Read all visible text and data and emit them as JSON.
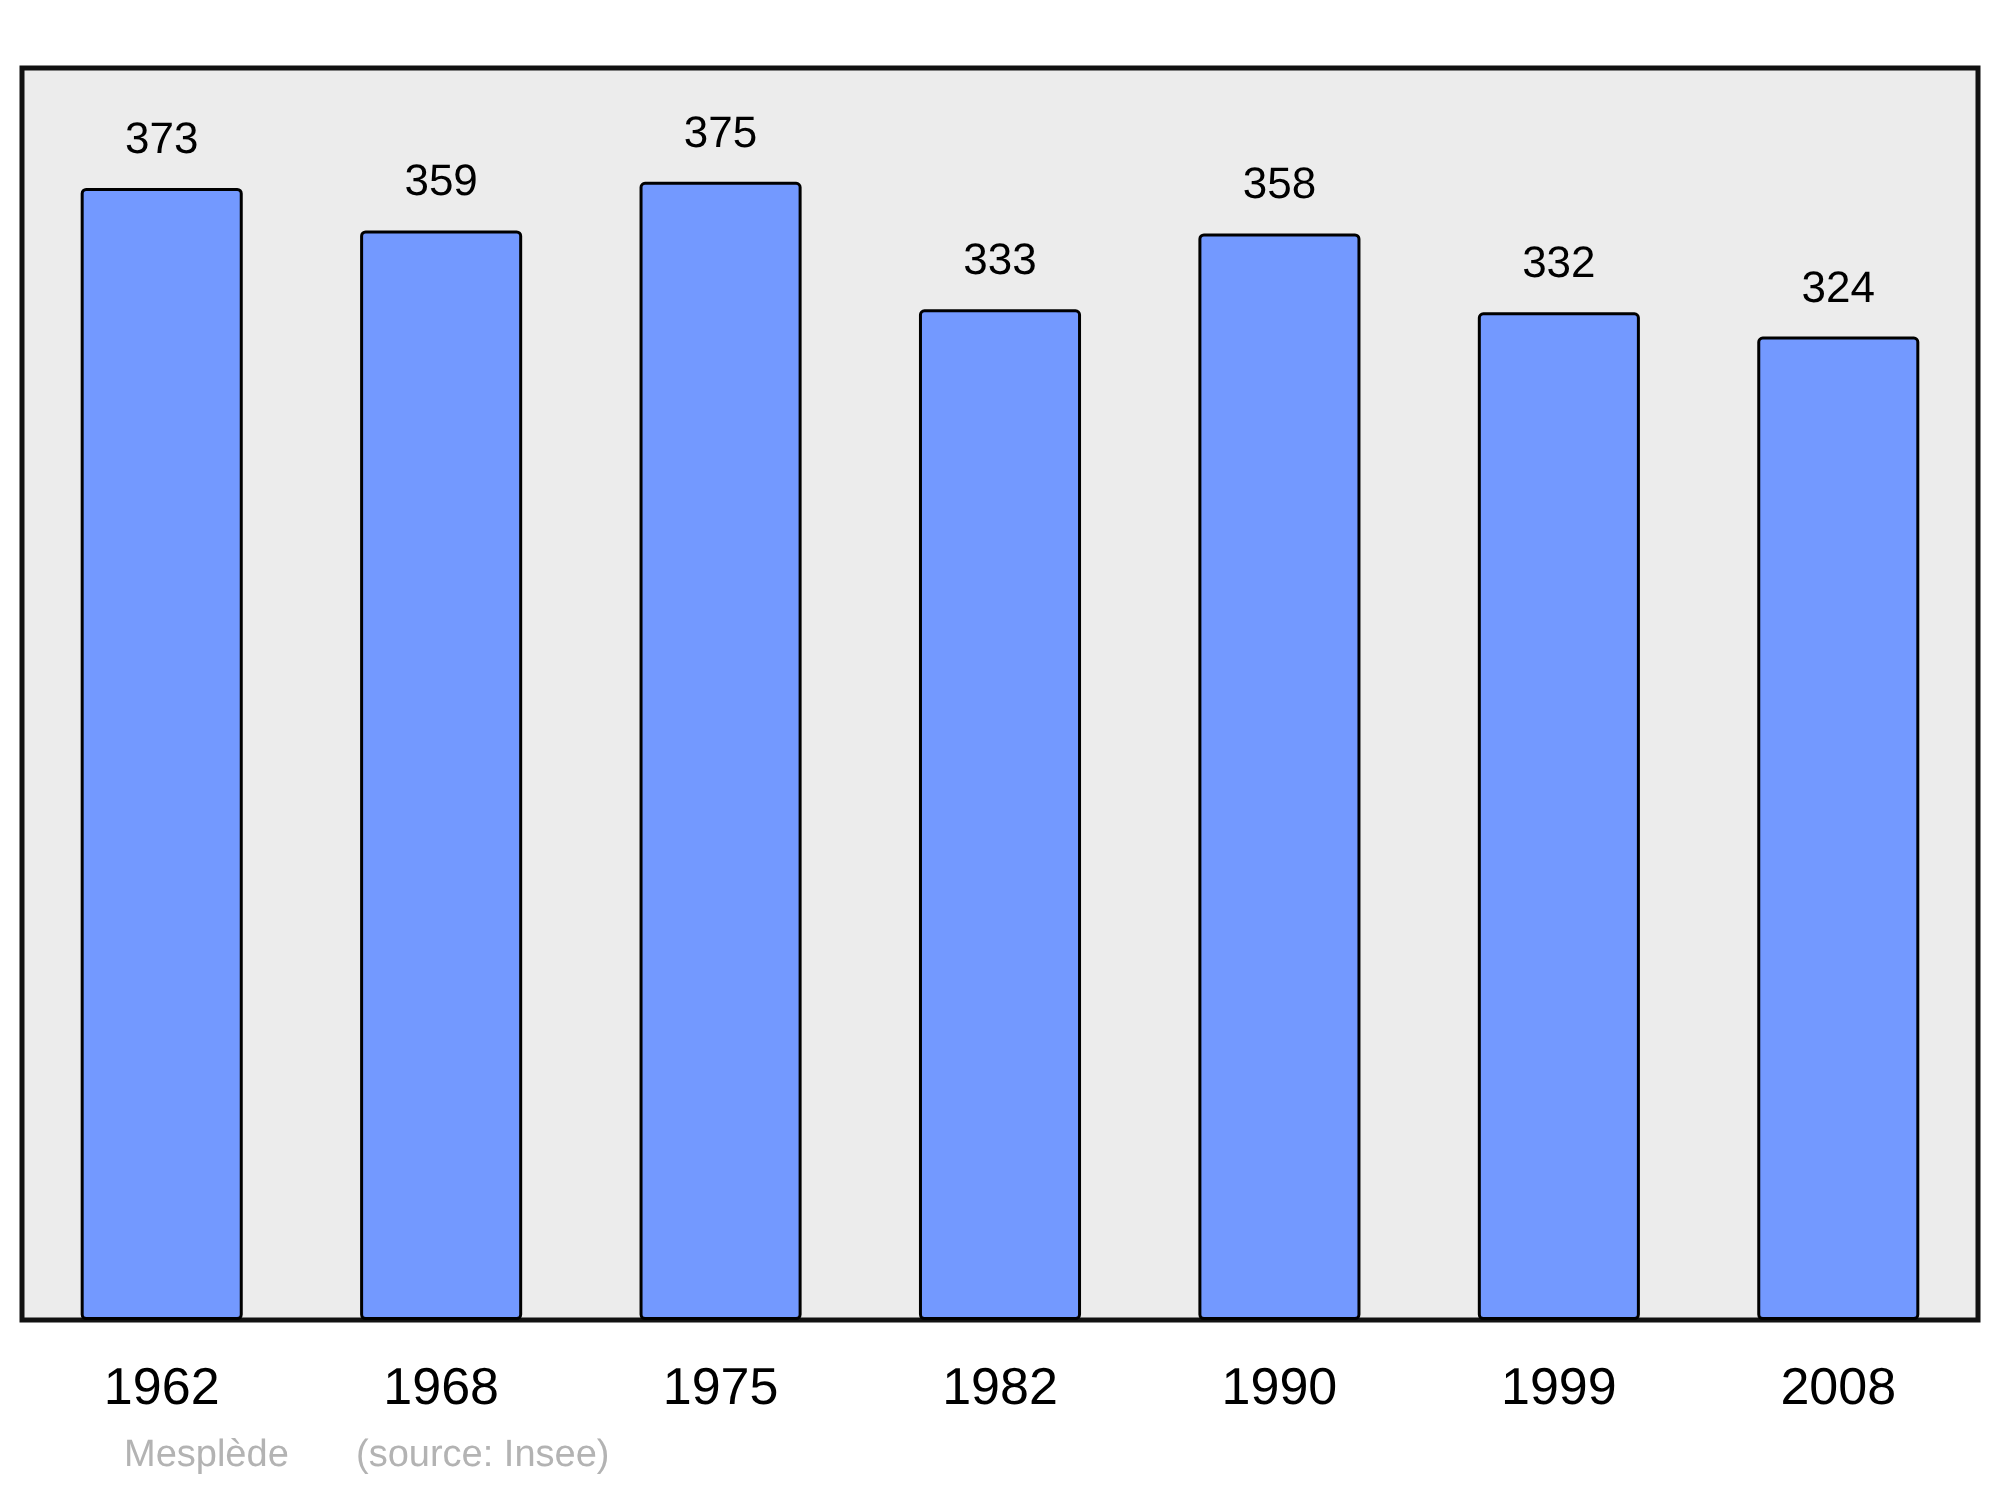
{
  "chart_data": {
    "type": "bar",
    "categories": [
      "1962",
      "1968",
      "1975",
      "1982",
      "1990",
      "1999",
      "2008"
    ],
    "values": [
      373,
      359,
      375,
      333,
      358,
      332,
      324
    ],
    "color": "#7399ff",
    "data_labels": true,
    "annotations": [
      "Mesplède",
      "(source: Insee)"
    ]
  }
}
